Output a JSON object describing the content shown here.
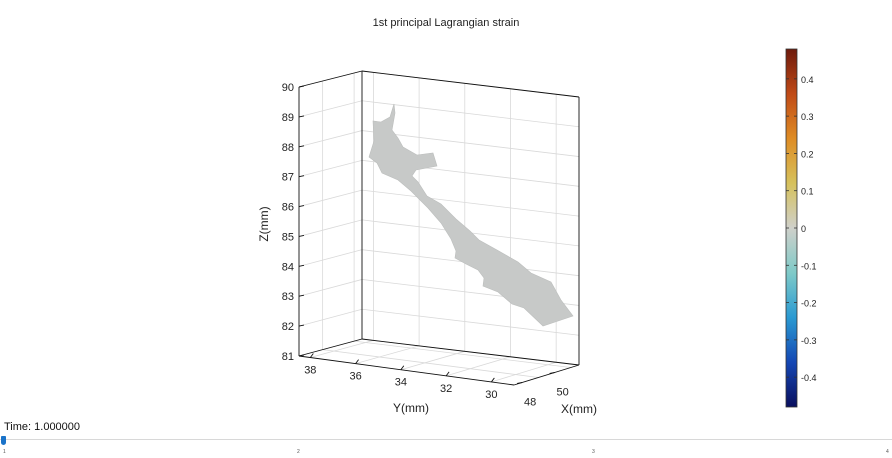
{
  "chart_data": {
    "type": "3d-surface",
    "title": "1st principal Lagrangian strain",
    "xlabel": "X(mm)",
    "ylabel": "Y(mm)",
    "zlabel": "Z(mm)",
    "x_ticks": [
      "48",
      "50"
    ],
    "y_ticks": [
      "38",
      "36",
      "34",
      "32",
      "30"
    ],
    "z_ticks": [
      "81",
      "82",
      "83",
      "84",
      "85",
      "86",
      "87",
      "88",
      "89",
      "90"
    ],
    "zlim": [
      81,
      90
    ],
    "ylim": [
      29,
      38.5
    ],
    "xlim": [
      47.5,
      51.5
    ],
    "grid": true,
    "surface_color": "#c7c9c8",
    "colorbar": {
      "ticks": [
        "0.4",
        "0.3",
        "0.2",
        "0.1",
        "0",
        "-0.1",
        "-0.2",
        "-0.3",
        "-0.4"
      ],
      "range": [
        -0.48,
        0.48
      ],
      "colormap": [
        "#0a0f5e",
        "#1447b4",
        "#2a9ad2",
        "#7fcac8",
        "#cfd0ca",
        "#d6c15c",
        "#de8c24",
        "#c04a17",
        "#6e1a0c"
      ]
    }
  },
  "time": {
    "label": "Time: 1.000000",
    "ticks": [
      "1",
      "2",
      "3",
      "4"
    ],
    "value": 0
  }
}
